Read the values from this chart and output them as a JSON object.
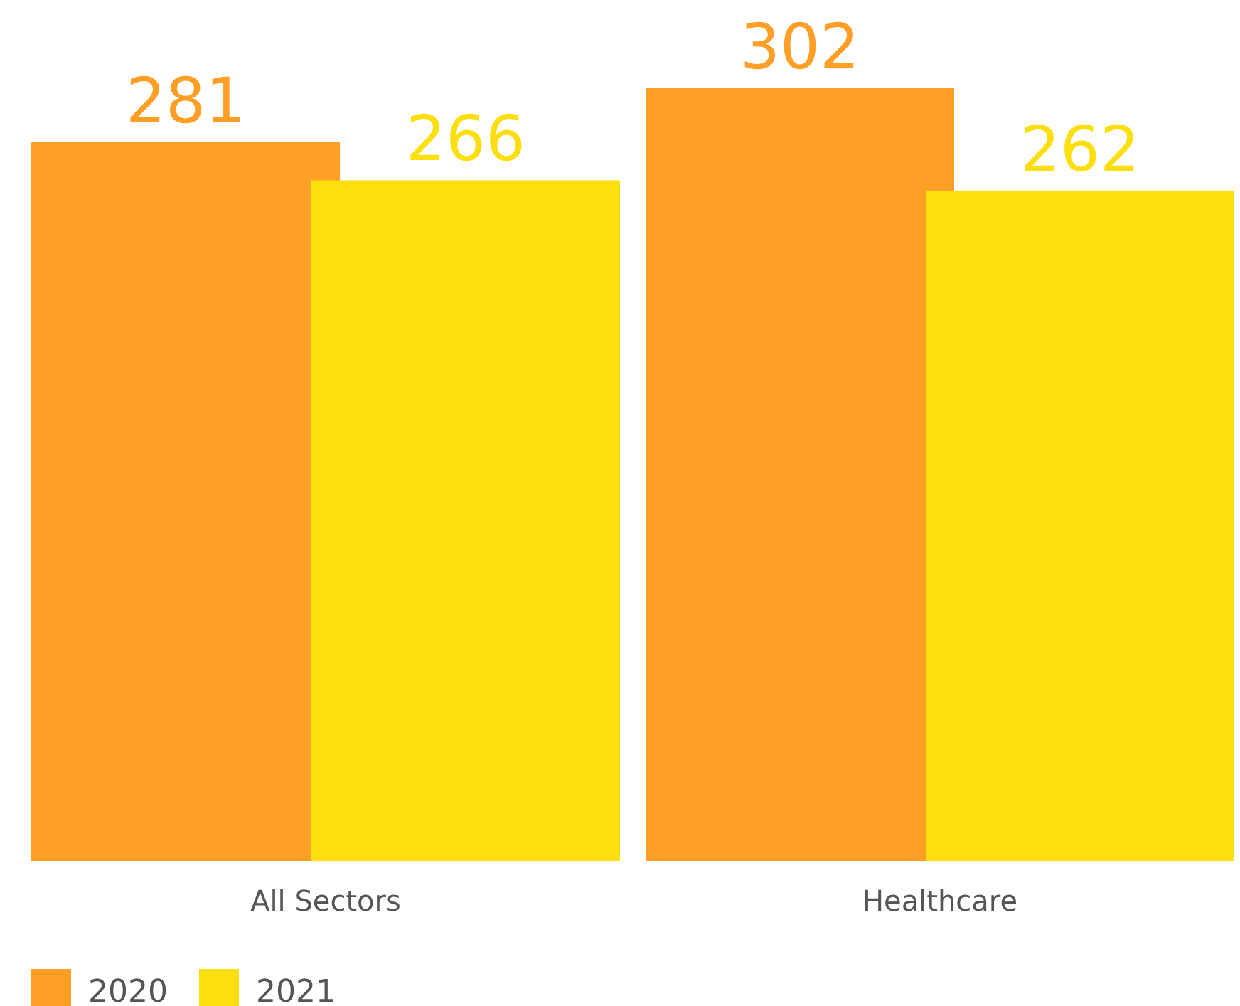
{
  "chart_data": {
    "type": "bar",
    "categories": [
      "All Sectors",
      "Healthcare"
    ],
    "series": [
      {
        "name": "2020",
        "color": "#ff9f26",
        "values": [
          281,
          302
        ]
      },
      {
        "name": "2021",
        "color": "#fddf10",
        "values": [
          266,
          262
        ]
      }
    ],
    "data_labels": true,
    "legend": "bottom left"
  }
}
